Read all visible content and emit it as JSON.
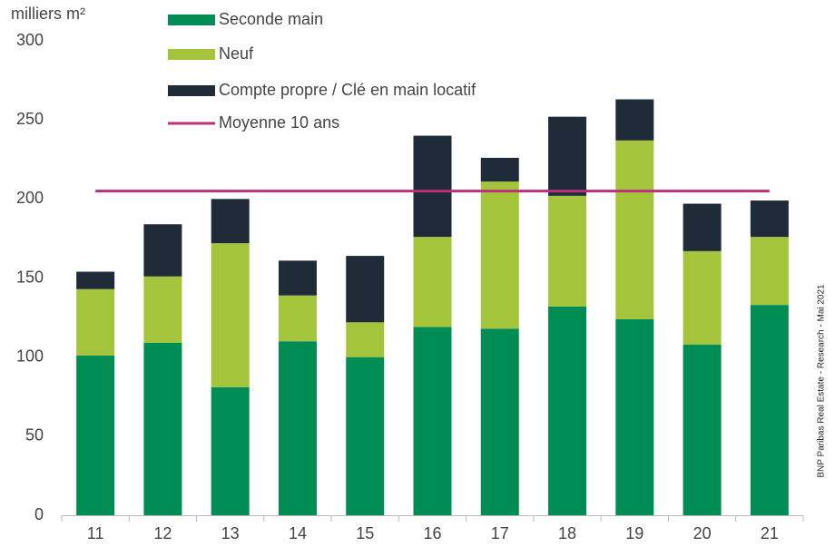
{
  "chart_data": {
    "type": "stacked_bar",
    "y_label": "milliers m²",
    "source": "BNP Paribas Real Estate - Research - Mai 2021",
    "categories": [
      "11",
      "12",
      "13",
      "14",
      "15",
      "16",
      "17",
      "18",
      "19",
      "20",
      "21"
    ],
    "series": [
      {
        "name": "Seconde main",
        "color": "#008c55",
        "values": [
          101,
          109,
          81,
          110,
          100,
          119,
          118,
          132,
          124,
          108,
          133
        ]
      },
      {
        "name": "Neuf",
        "color": "#a4c43b",
        "values": [
          42,
          42,
          91,
          29,
          22,
          57,
          93,
          70,
          113,
          59,
          43
        ]
      },
      {
        "name": "Compte propre / Clé en main locatif",
        "color": "#1f2b38",
        "values": [
          11,
          33,
          28,
          22,
          42,
          64,
          15,
          50,
          26,
          30,
          23
        ]
      }
    ],
    "average": {
      "name": "Moyenne 10 ans",
      "color": "#b8327a",
      "value": 205
    },
    "ylim": [
      0,
      300
    ],
    "yticks": [
      0,
      50,
      100,
      150,
      200,
      250,
      300
    ],
    "grid": false
  }
}
